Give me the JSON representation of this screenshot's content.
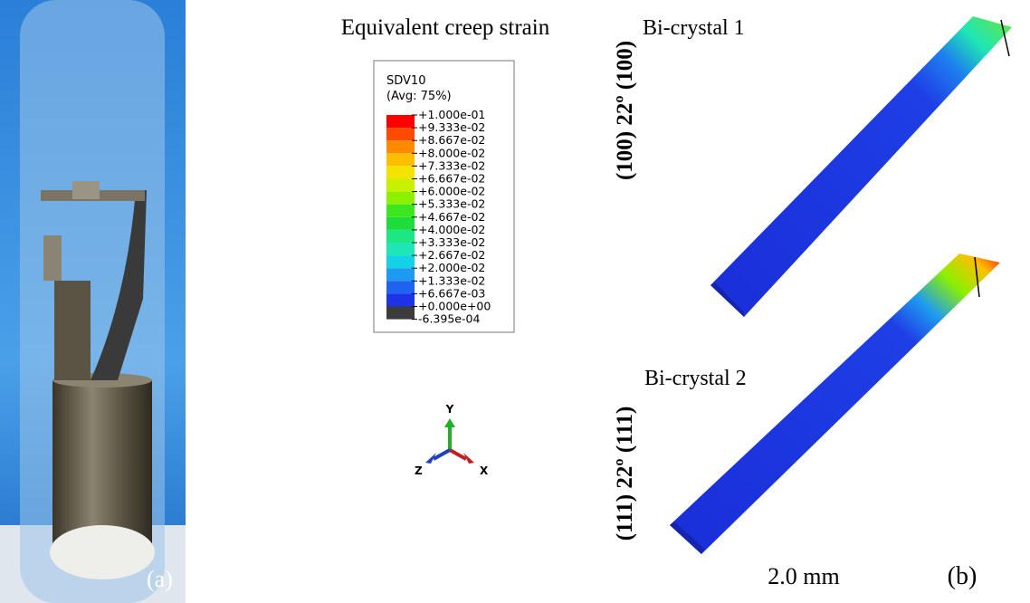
{
  "panel_a": {
    "label": "(a)"
  },
  "panel_b": {
    "label": "(b)",
    "title": "Equivalent creep strain",
    "legend": {
      "title": "SDV10",
      "subtitle": "(Avg: 75%)",
      "labels": [
        "+1.000e-01",
        "+9.333e-02",
        "+8.667e-02",
        "+8.000e-02",
        "+7.333e-02",
        "+6.667e-02",
        "+6.000e-02",
        "+5.333e-02",
        "+4.667e-02",
        "+4.000e-02",
        "+3.333e-02",
        "+2.667e-02",
        "+2.000e-02",
        "+1.333e-02",
        "+6.667e-03",
        "+0.000e+00",
        "-6.395e-04"
      ],
      "colors": [
        "#ff0000",
        "#ff4a00",
        "#ff8a00",
        "#ffbe00",
        "#f2e400",
        "#c8f000",
        "#8cf000",
        "#3ce61e",
        "#1edc3c",
        "#1ee682",
        "#1ee6b4",
        "#14d2e6",
        "#1e9bf0",
        "#1e64f0",
        "#1e32e6",
        "#3c3c3c"
      ]
    },
    "axes": {
      "y": "Y",
      "z": "Z",
      "x": "X"
    },
    "crystal_1": {
      "name": "Bi-crystal 1",
      "orientation": "(100)  22º  (100)"
    },
    "crystal_2": {
      "name": "Bi-crystal 2",
      "orientation": "(111)  22º  (111)"
    },
    "scale": "2.0 mm"
  }
}
